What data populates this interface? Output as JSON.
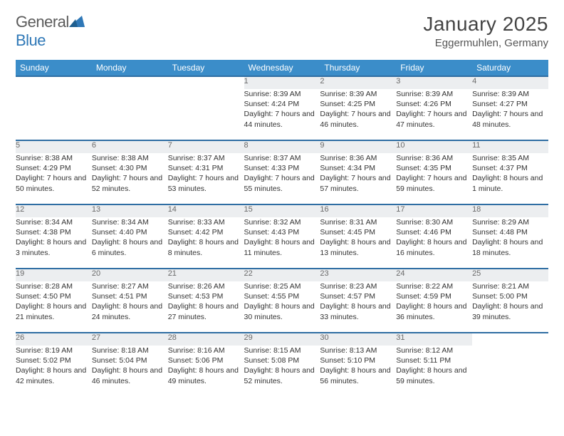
{
  "brand": {
    "word1": "General",
    "word2": "Blue"
  },
  "title": "January 2025",
  "location": "Eggermuhlen, Germany",
  "colors": {
    "header_bg": "#3b8dc9",
    "header_text": "#ffffff",
    "row_border": "#2f6ea3",
    "daynum_bg": "#eceef0",
    "text": "#333333",
    "brand_gray": "#5a5a5a",
    "brand_blue": "#2f78b7"
  },
  "day_headers": [
    "Sunday",
    "Monday",
    "Tuesday",
    "Wednesday",
    "Thursday",
    "Friday",
    "Saturday"
  ],
  "weeks": [
    {
      "nums": [
        "",
        "",
        "",
        "1",
        "2",
        "3",
        "4"
      ],
      "cells": [
        "",
        "",
        "",
        "Sunrise: 8:39 AM\nSunset: 4:24 PM\nDaylight: 7 hours and 44 minutes.",
        "Sunrise: 8:39 AM\nSunset: 4:25 PM\nDaylight: 7 hours and 46 minutes.",
        "Sunrise: 8:39 AM\nSunset: 4:26 PM\nDaylight: 7 hours and 47 minutes.",
        "Sunrise: 8:39 AM\nSunset: 4:27 PM\nDaylight: 7 hours and 48 minutes."
      ]
    },
    {
      "nums": [
        "5",
        "6",
        "7",
        "8",
        "9",
        "10",
        "11"
      ],
      "cells": [
        "Sunrise: 8:38 AM\nSunset: 4:29 PM\nDaylight: 7 hours and 50 minutes.",
        "Sunrise: 8:38 AM\nSunset: 4:30 PM\nDaylight: 7 hours and 52 minutes.",
        "Sunrise: 8:37 AM\nSunset: 4:31 PM\nDaylight: 7 hours and 53 minutes.",
        "Sunrise: 8:37 AM\nSunset: 4:33 PM\nDaylight: 7 hours and 55 minutes.",
        "Sunrise: 8:36 AM\nSunset: 4:34 PM\nDaylight: 7 hours and 57 minutes.",
        "Sunrise: 8:36 AM\nSunset: 4:35 PM\nDaylight: 7 hours and 59 minutes.",
        "Sunrise: 8:35 AM\nSunset: 4:37 PM\nDaylight: 8 hours and 1 minute."
      ]
    },
    {
      "nums": [
        "12",
        "13",
        "14",
        "15",
        "16",
        "17",
        "18"
      ],
      "cells": [
        "Sunrise: 8:34 AM\nSunset: 4:38 PM\nDaylight: 8 hours and 3 minutes.",
        "Sunrise: 8:34 AM\nSunset: 4:40 PM\nDaylight: 8 hours and 6 minutes.",
        "Sunrise: 8:33 AM\nSunset: 4:42 PM\nDaylight: 8 hours and 8 minutes.",
        "Sunrise: 8:32 AM\nSunset: 4:43 PM\nDaylight: 8 hours and 11 minutes.",
        "Sunrise: 8:31 AM\nSunset: 4:45 PM\nDaylight: 8 hours and 13 minutes.",
        "Sunrise: 8:30 AM\nSunset: 4:46 PM\nDaylight: 8 hours and 16 minutes.",
        "Sunrise: 8:29 AM\nSunset: 4:48 PM\nDaylight: 8 hours and 18 minutes."
      ]
    },
    {
      "nums": [
        "19",
        "20",
        "21",
        "22",
        "23",
        "24",
        "25"
      ],
      "cells": [
        "Sunrise: 8:28 AM\nSunset: 4:50 PM\nDaylight: 8 hours and 21 minutes.",
        "Sunrise: 8:27 AM\nSunset: 4:51 PM\nDaylight: 8 hours and 24 minutes.",
        "Sunrise: 8:26 AM\nSunset: 4:53 PM\nDaylight: 8 hours and 27 minutes.",
        "Sunrise: 8:25 AM\nSunset: 4:55 PM\nDaylight: 8 hours and 30 minutes.",
        "Sunrise: 8:23 AM\nSunset: 4:57 PM\nDaylight: 8 hours and 33 minutes.",
        "Sunrise: 8:22 AM\nSunset: 4:59 PM\nDaylight: 8 hours and 36 minutes.",
        "Sunrise: 8:21 AM\nSunset: 5:00 PM\nDaylight: 8 hours and 39 minutes."
      ]
    },
    {
      "nums": [
        "26",
        "27",
        "28",
        "29",
        "30",
        "31",
        ""
      ],
      "cells": [
        "Sunrise: 8:19 AM\nSunset: 5:02 PM\nDaylight: 8 hours and 42 minutes.",
        "Sunrise: 8:18 AM\nSunset: 5:04 PM\nDaylight: 8 hours and 46 minutes.",
        "Sunrise: 8:16 AM\nSunset: 5:06 PM\nDaylight: 8 hours and 49 minutes.",
        "Sunrise: 8:15 AM\nSunset: 5:08 PM\nDaylight: 8 hours and 52 minutes.",
        "Sunrise: 8:13 AM\nSunset: 5:10 PM\nDaylight: 8 hours and 56 minutes.",
        "Sunrise: 8:12 AM\nSunset: 5:11 PM\nDaylight: 8 hours and 59 minutes.",
        ""
      ]
    }
  ]
}
